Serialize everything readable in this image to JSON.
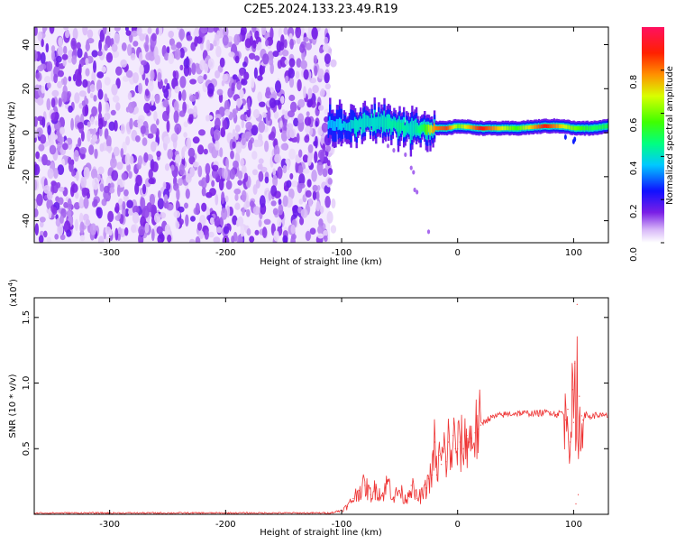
{
  "title": "C2E5.2024.133.23.49.R19",
  "chart_data": [
    {
      "type": "heatmap",
      "xlabel": "Height of straight line (km)",
      "ylabel": "Frequency (Hz)",
      "xlim": [
        -365,
        130
      ],
      "ylim": [
        -50,
        48
      ],
      "x_ticks": [
        -300,
        -200,
        -100,
        0,
        100
      ],
      "y_ticks": [
        -40,
        -20,
        0,
        20,
        40
      ],
      "noise_region_x": [
        -365,
        -110
      ],
      "signal_band": {
        "x": [
          -110,
          -90,
          -70,
          -50,
          -40,
          -30,
          -20,
          -10,
          0,
          20,
          50,
          75,
          90,
          100,
          115,
          130
        ],
        "center_hz": [
          4,
          3,
          5,
          3,
          1,
          2,
          2,
          2,
          3,
          2,
          2,
          3,
          3,
          2,
          2,
          3
        ],
        "peak_amplitude": [
          0.35,
          0.4,
          0.4,
          0.45,
          0.4,
          0.5,
          0.8,
          0.85,
          0.6,
          0.9,
          0.55,
          0.9,
          0.7,
          0.6,
          0.5,
          0.5
        ]
      },
      "colorbar": {
        "label": "Normalized spectral amplitude",
        "range": [
          0.0,
          1.0
        ],
        "ticks": [
          "0.0",
          "0.2",
          "0.4",
          "0.6",
          "0.8"
        ]
      }
    },
    {
      "type": "line",
      "xlabel": "Height of straight line (km)",
      "ylabel": "SNR (10 * v/v)",
      "scale_label": "(x10",
      "scale_exp": "4",
      "scale_close": ")",
      "xlim": [
        -365,
        130
      ],
      "ylim": [
        0,
        1.65
      ],
      "x_ticks": [
        -300,
        -200,
        -100,
        0,
        100
      ],
      "y_ticks": [
        "0.5",
        "1.0",
        "1.5"
      ],
      "y_tick_values": [
        0.5,
        1.0,
        1.5
      ],
      "line_color": "#ee3333",
      "series": [
        {
          "x": [
            -365,
            -300,
            -200,
            -110,
            -100,
            -95,
            -90,
            -85,
            -80,
            -75,
            -70,
            -65,
            -60,
            -55,
            -50,
            -45,
            -40,
            -35,
            -30,
            -27,
            -25,
            -22,
            -20,
            -18,
            -16,
            -14,
            -12,
            -10,
            -8,
            -6,
            -4,
            -2,
            0,
            2,
            5,
            8,
            10,
            12,
            15,
            18,
            20,
            22,
            25,
            30,
            40,
            50,
            60,
            70,
            80,
            85,
            90,
            93,
            95,
            97,
            99,
            100,
            101,
            102,
            103,
            104,
            105,
            106,
            107,
            108,
            110,
            115,
            120,
            125,
            130
          ],
          "y": [
            0.01,
            0.01,
            0.01,
            0.01,
            0.03,
            0.06,
            0.12,
            0.18,
            0.22,
            0.15,
            0.2,
            0.14,
            0.25,
            0.13,
            0.18,
            0.11,
            0.22,
            0.12,
            0.15,
            0.2,
            0.27,
            0.3,
            0.55,
            0.3,
            0.45,
            0.38,
            0.5,
            0.4,
            0.55,
            0.4,
            0.6,
            0.5,
            0.5,
            0.55,
            0.5,
            0.6,
            0.55,
            0.58,
            0.62,
            0.65,
            0.68,
            0.7,
            0.72,
            0.74,
            0.76,
            0.77,
            0.77,
            0.77,
            0.78,
            0.76,
            0.78,
            0.72,
            0.8,
            0.55,
            0.95,
            0.7,
            1.15,
            0.08,
            1.6,
            0.15,
            0.9,
            0.5,
            0.75,
            0.72,
            0.76,
            0.74,
            0.76,
            0.75,
            0.75
          ]
        }
      ]
    }
  ]
}
